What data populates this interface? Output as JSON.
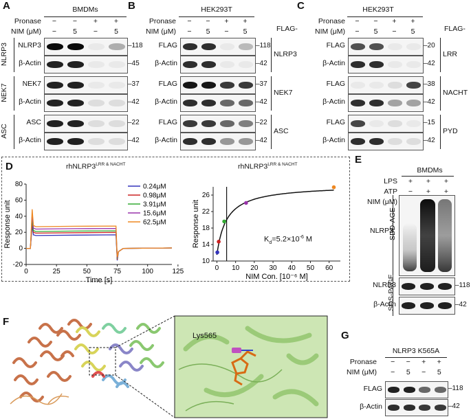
{
  "panels": {
    "A": {
      "letter": "A",
      "title": "BMDMs",
      "pronase_label": "Pronase",
      "nim_label": "NIM (μM)",
      "pronase": [
        "−",
        "−",
        "+",
        "+"
      ],
      "nim": [
        "−",
        "5",
        "−",
        "5"
      ],
      "groups": [
        {
          "name": "NLRP3",
          "rows": [
            {
              "label": "NLRP3",
              "mw": "118"
            },
            {
              "label": "β-Actin",
              "mw": "45"
            }
          ]
        },
        {
          "name": "NEK7",
          "rows": [
            {
              "label": "NEK7",
              "mw": "37"
            },
            {
              "label": "β-Actin",
              "mw": "42"
            }
          ]
        },
        {
          "name": "ASC",
          "rows": [
            {
              "label": "ASC",
              "mw": "22"
            },
            {
              "label": "β-Actin",
              "mw": "42"
            }
          ]
        }
      ]
    },
    "B": {
      "letter": "B",
      "title": "HEK293T",
      "pronase_label": "Pronase",
      "nim_label": "NIM (μM)",
      "pronase": [
        "−",
        "−",
        "+",
        "+"
      ],
      "nim": [
        "−",
        "5",
        "−",
        "5"
      ],
      "flag_header": "FLAG-",
      "groups": [
        {
          "name": "NLRP3",
          "rows": [
            {
              "label": "FLAG",
              "mw": "118"
            },
            {
              "label": "β-Actin",
              "mw": "42"
            }
          ]
        },
        {
          "name": "NEK7",
          "rows": [
            {
              "label": "FLAG",
              "mw": "37"
            },
            {
              "label": "β-Actin",
              "mw": "42"
            }
          ]
        },
        {
          "name": "ASC",
          "rows": [
            {
              "label": "FLAG",
              "mw": "22"
            },
            {
              "label": "β-Actin",
              "mw": "42"
            }
          ]
        }
      ]
    },
    "C": {
      "letter": "C",
      "title": "HEK293T",
      "pronase_label": "Pronase",
      "nim_label": "NIM (μM)",
      "pronase": [
        "−",
        "−",
        "+",
        "+"
      ],
      "nim": [
        "−",
        "5",
        "−",
        "5"
      ],
      "flag_header": "FLAG-",
      "groups": [
        {
          "name": "LRR",
          "rows": [
            {
              "label": "FLAG",
              "mw": "20"
            },
            {
              "label": "β-Actin",
              "mw": "42"
            }
          ]
        },
        {
          "name": "NACHT",
          "rows": [
            {
              "label": "FLAG",
              "mw": "38"
            },
            {
              "label": "β-Actin",
              "mw": "42"
            }
          ]
        },
        {
          "name": "PYD",
          "rows": [
            {
              "label": "FLAG",
              "mw": "15"
            },
            {
              "label": "β-Actin",
              "mw": "42"
            }
          ]
        }
      ]
    },
    "D": {
      "letter": "D",
      "left_title": "rhNLRP3",
      "left_title_sup": "LRR & NACHT",
      "right_title": "rhNLRP3",
      "right_title_sup": "LRR & NACHT",
      "kd_text": "K",
      "kd_sub": "d",
      "kd_value": "=5.2×10",
      "kd_exp": "-6",
      "kd_unit": " M"
    },
    "E": {
      "letter": "E",
      "title": "BMDMs",
      "lps_label": "LPS",
      "atp_label": "ATP",
      "nim_label": "NIM (μM)",
      "lps": [
        "+",
        "+",
        "+"
      ],
      "atp": [
        "−",
        "+",
        "+"
      ],
      "nim": [
        "−",
        "−",
        "5"
      ],
      "sdd_label": "SDD-AGE",
      "sds_label": "SDS-PAGE",
      "rows": [
        {
          "label": "NLRP3",
          "mw": ""
        },
        {
          "label": "NLRP3",
          "mw": "118"
        },
        {
          "label": "β-Actin",
          "mw": "42"
        }
      ]
    },
    "F": {
      "letter": "F",
      "residue_label": "Lys565"
    },
    "G": {
      "letter": "G",
      "title": "NLRP3 K565A",
      "pronase_label": "Pronase",
      "nim_label": "NIM (μM)",
      "pronase": [
        "−",
        "−",
        "+",
        "+"
      ],
      "nim": [
        "−",
        "5",
        "−",
        "5"
      ],
      "rows": [
        {
          "label": "FLAG",
          "mw": "118"
        },
        {
          "label": "β-Actin",
          "mw": "42"
        }
      ]
    }
  },
  "chart_data": [
    {
      "type": "line",
      "panel": "D-left",
      "title": "rhNLRP3 LRR & NACHT",
      "xlabel": "Time [s]",
      "ylabel": "Response unit",
      "xlim": [
        0,
        120
      ],
      "ylim": [
        -20,
        80
      ],
      "xticks": [
        0,
        25,
        50,
        75,
        100,
        125
      ],
      "yticks": [
        -20,
        0,
        20,
        40,
        60,
        80
      ],
      "grid": false,
      "legend_position": "top-right",
      "series": [
        {
          "name": "0.24μM",
          "color": "#3333bb",
          "plateau": 16
        },
        {
          "name": "0.98μM",
          "color": "#cc2222",
          "plateau": 19
        },
        {
          "name": "3.91μM",
          "color": "#33aa33",
          "plateau": 21
        },
        {
          "name": "15.6μM",
          "color": "#9933aa",
          "plateau": 24
        },
        {
          "name": "62.5μM",
          "color": "#ee8822",
          "plateau": 27
        }
      ]
    },
    {
      "type": "scatter",
      "panel": "D-right",
      "title": "rhNLRP3 LRR & NACHT",
      "xlabel": "NIM Con. [10⁻⁶ M]",
      "ylabel": "Response unit",
      "xlim": [
        -2,
        66
      ],
      "ylim": [
        10,
        28
      ],
      "xticks": [
        0,
        10,
        20,
        30,
        40,
        50,
        60
      ],
      "yticks": [
        10,
        14,
        18,
        22,
        26
      ],
      "points": [
        {
          "x": 0.24,
          "y": 12.1,
          "color": "#3333bb"
        },
        {
          "x": 0.98,
          "y": 14.7,
          "color": "#cc2222"
        },
        {
          "x": 3.91,
          "y": 19.6,
          "color": "#33aa33"
        },
        {
          "x": 15.6,
          "y": 24.1,
          "color": "#9933aa"
        },
        {
          "x": 62.5,
          "y": 27.9,
          "color": "#ee8822"
        }
      ],
      "vline_x": 5.2
    }
  ]
}
